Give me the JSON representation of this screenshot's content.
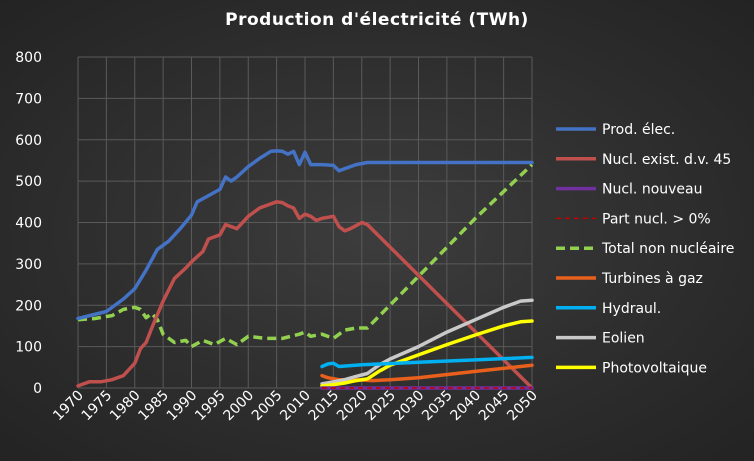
{
  "chart_data": {
    "type": "line",
    "title": "Production  d'électricité  (TWh)",
    "xlabel": "",
    "ylabel": "",
    "xlim": [
      1970,
      2050
    ],
    "ylim": [
      0,
      800
    ],
    "x_ticks": [
      1970,
      1975,
      1980,
      1985,
      1990,
      1995,
      2000,
      2005,
      2010,
      2015,
      2020,
      2025,
      2030,
      2035,
      2040,
      2045,
      2050
    ],
    "y_ticks": [
      0,
      100,
      200,
      300,
      400,
      500,
      600,
      700,
      800
    ],
    "grid": true,
    "legend_position": "right",
    "series": [
      {
        "name": "Prod. élec.",
        "color": "#4472c4",
        "dash": "solid",
        "points": [
          [
            1970,
            168
          ],
          [
            1975,
            185
          ],
          [
            1978,
            215
          ],
          [
            1980,
            240
          ],
          [
            1982,
            285
          ],
          [
            1984,
            335
          ],
          [
            1986,
            355
          ],
          [
            1988,
            385
          ],
          [
            1990,
            418
          ],
          [
            1991,
            450
          ],
          [
            1993,
            465
          ],
          [
            1995,
            480
          ],
          [
            1996,
            510
          ],
          [
            1997,
            500
          ],
          [
            1998,
            510
          ],
          [
            2000,
            535
          ],
          [
            2002,
            555
          ],
          [
            2004,
            572
          ],
          [
            2005,
            573
          ],
          [
            2006,
            572
          ],
          [
            2007,
            565
          ],
          [
            2008,
            572
          ],
          [
            2009,
            540
          ],
          [
            2010,
            570
          ],
          [
            2011,
            540
          ],
          [
            2013,
            540
          ],
          [
            2015,
            538
          ],
          [
            2016,
            525
          ],
          [
            2017,
            530
          ],
          [
            2019,
            540
          ],
          [
            2021,
            545
          ],
          [
            2050,
            545
          ]
        ]
      },
      {
        "name": "Nucl. exist. d.v. 45",
        "color": "#c0504d",
        "dash": "solid",
        "points": [
          [
            1970,
            5
          ],
          [
            1972,
            15
          ],
          [
            1974,
            15
          ],
          [
            1976,
            20
          ],
          [
            1978,
            30
          ],
          [
            1980,
            60
          ],
          [
            1981,
            95
          ],
          [
            1982,
            110
          ],
          [
            1983,
            145
          ],
          [
            1985,
            210
          ],
          [
            1987,
            265
          ],
          [
            1989,
            290
          ],
          [
            1990,
            305
          ],
          [
            1992,
            330
          ],
          [
            1993,
            360
          ],
          [
            1995,
            370
          ],
          [
            1996,
            395
          ],
          [
            1998,
            385
          ],
          [
            2000,
            415
          ],
          [
            2002,
            435
          ],
          [
            2004,
            445
          ],
          [
            2005,
            450
          ],
          [
            2006,
            448
          ],
          [
            2007,
            440
          ],
          [
            2008,
            435
          ],
          [
            2009,
            410
          ],
          [
            2010,
            420
          ],
          [
            2011,
            415
          ],
          [
            2012,
            405
          ],
          [
            2013,
            410
          ],
          [
            2015,
            415
          ],
          [
            2016,
            390
          ],
          [
            2017,
            380
          ],
          [
            2018,
            385
          ],
          [
            2020,
            400
          ],
          [
            2021,
            395
          ],
          [
            2050,
            0
          ]
        ]
      },
      {
        "name": "Nucl. nouveau",
        "color": "#7030a0",
        "dash": "solid",
        "points": [
          [
            2013,
            0
          ],
          [
            2050,
            0
          ]
        ]
      },
      {
        "name": "Part nucl. > 0%",
        "color": "#c00000",
        "dash": "dashed-thin",
        "points": [
          [
            2013,
            0
          ],
          [
            2050,
            0
          ]
        ]
      },
      {
        "name": "Total non nucléaire",
        "color": "#92d050",
        "dash": "dashed",
        "points": [
          [
            1970,
            165
          ],
          [
            1973,
            168
          ],
          [
            1976,
            175
          ],
          [
            1978,
            190
          ],
          [
            1980,
            195
          ],
          [
            1981,
            190
          ],
          [
            1982,
            170
          ],
          [
            1983,
            180
          ],
          [
            1984,
            165
          ],
          [
            1985,
            130
          ],
          [
            1987,
            110
          ],
          [
            1989,
            115
          ],
          [
            1990,
            100
          ],
          [
            1992,
            115
          ],
          [
            1994,
            105
          ],
          [
            1996,
            120
          ],
          [
            1998,
            105
          ],
          [
            2000,
            125
          ],
          [
            2003,
            120
          ],
          [
            2006,
            120
          ],
          [
            2009,
            130
          ],
          [
            2010,
            135
          ],
          [
            2011,
            125
          ],
          [
            2013,
            130
          ],
          [
            2015,
            120
          ],
          [
            2017,
            140
          ],
          [
            2019,
            145
          ],
          [
            2021,
            145
          ],
          [
            2030,
            270
          ],
          [
            2040,
            410
          ],
          [
            2050,
            540
          ]
        ]
      },
      {
        "name": "Turbines à gaz",
        "color": "#e8601c",
        "dash": "solid",
        "points": [
          [
            2013,
            30
          ],
          [
            2014,
            25
          ],
          [
            2016,
            20
          ],
          [
            2019,
            20
          ],
          [
            2022,
            18
          ],
          [
            2025,
            20
          ],
          [
            2030,
            25
          ],
          [
            2040,
            40
          ],
          [
            2050,
            55
          ]
        ]
      },
      {
        "name": "Hydraul.",
        "color": "#00b0f0",
        "dash": "solid",
        "points": [
          [
            2013,
            52
          ],
          [
            2014,
            58
          ],
          [
            2015,
            60
          ],
          [
            2016,
            52
          ],
          [
            2020,
            56
          ],
          [
            2030,
            62
          ],
          [
            2040,
            68
          ],
          [
            2050,
            74
          ]
        ]
      },
      {
        "name": "Eolien",
        "color": "#c9c9c9",
        "dash": "solid",
        "points": [
          [
            2013,
            10
          ],
          [
            2015,
            15
          ],
          [
            2017,
            20
          ],
          [
            2019,
            28
          ],
          [
            2021,
            35
          ],
          [
            2023,
            55
          ],
          [
            2025,
            70
          ],
          [
            2030,
            100
          ],
          [
            2035,
            135
          ],
          [
            2040,
            165
          ],
          [
            2045,
            195
          ],
          [
            2048,
            210
          ],
          [
            2050,
            212
          ]
        ]
      },
      {
        "name": "Photovoltaique",
        "color": "#ffff00",
        "dash": "solid",
        "points": [
          [
            2013,
            5
          ],
          [
            2015,
            8
          ],
          [
            2017,
            12
          ],
          [
            2019,
            18
          ],
          [
            2021,
            22
          ],
          [
            2023,
            40
          ],
          [
            2025,
            55
          ],
          [
            2030,
            80
          ],
          [
            2035,
            105
          ],
          [
            2040,
            128
          ],
          [
            2045,
            150
          ],
          [
            2048,
            160
          ],
          [
            2050,
            162
          ]
        ]
      }
    ]
  }
}
